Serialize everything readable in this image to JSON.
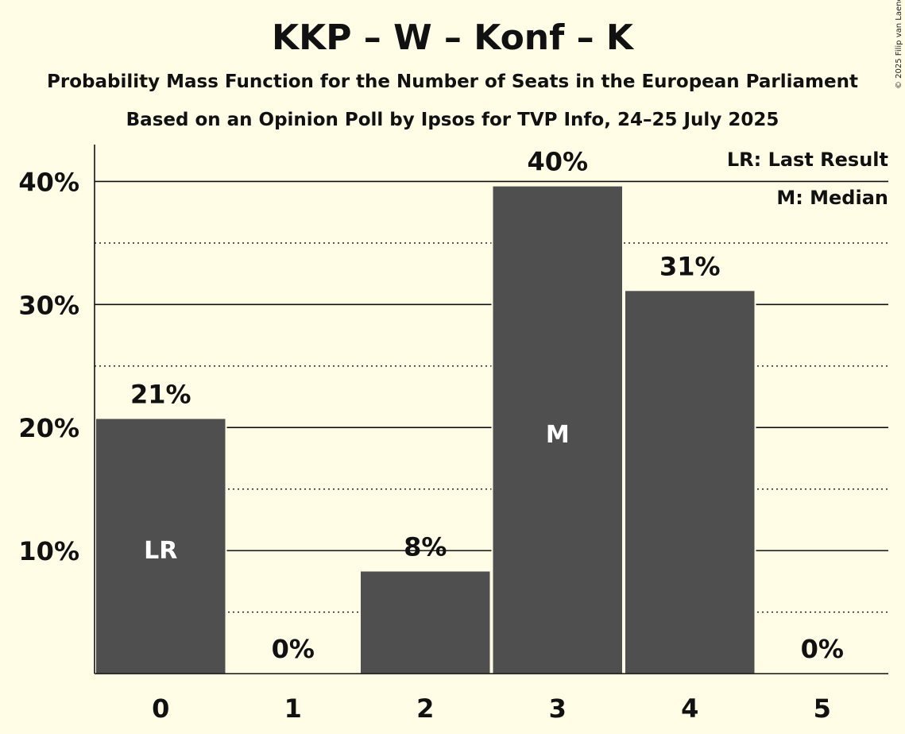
{
  "title": "KKP – W – Konf – K",
  "subtitle": "Probability Mass Function for the Number of Seats in the European Parliament",
  "subtitle2": "Based on an Opinion Poll by Ipsos for TVP Info, 24–25 July 2025",
  "copyright": "© 2025 Filip van Laenen",
  "legend": {
    "last_result": "LR: Last Result",
    "median": "M: Median"
  },
  "colors": {
    "background": "#FFFDE6",
    "bar": "#4F4F4F",
    "inside_text": "#FFFFFF"
  },
  "chart_data": {
    "type": "bar",
    "categories": [
      "0",
      "1",
      "2",
      "3",
      "4",
      "5"
    ],
    "values": [
      20.7,
      0,
      8.3,
      39.6,
      31.1,
      0
    ],
    "data_labels": [
      "21%",
      "0%",
      "8%",
      "40%",
      "31%",
      "0%"
    ],
    "inside_labels": [
      "LR",
      "",
      "",
      "M",
      "",
      ""
    ],
    "ylim": [
      0,
      43
    ],
    "y_ticks": [
      10,
      20,
      30,
      40
    ],
    "y_tick_labels": [
      "10%",
      "20%",
      "30%",
      "40%"
    ],
    "minor_gridlines": [
      5,
      15,
      25,
      35
    ],
    "grid": true,
    "legend_position": "top-right",
    "xlabel": "",
    "ylabel": ""
  }
}
